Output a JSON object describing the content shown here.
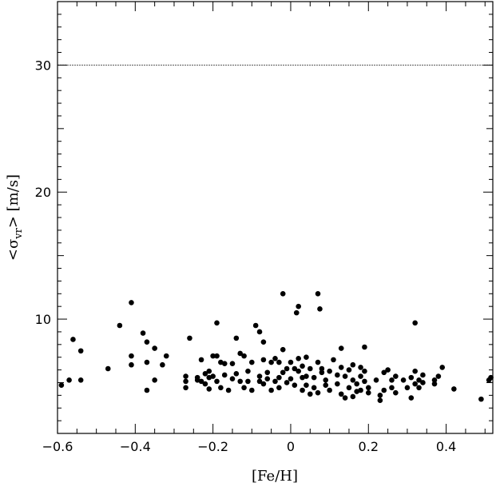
{
  "chart_data": {
    "type": "scatter",
    "xlabel": "[Fe/H]",
    "ylabel_parts": {
      "open": "<σ",
      "sub": "vr",
      "close": "> [m/s]"
    },
    "xlim": [
      -0.6,
      0.52
    ],
    "ylim": [
      1,
      35
    ],
    "x_ticks": [
      -0.6,
      -0.4,
      -0.2,
      0,
      0.2,
      0.4
    ],
    "x_tick_labels": [
      "−0.6",
      "−0.4",
      "−0.2",
      "0",
      "0.2",
      "0.4"
    ],
    "y_ticks": [
      10,
      20,
      30
    ],
    "y_tick_labels": [
      "10",
      "20",
      "30"
    ],
    "reference_line_y": 30,
    "points": [
      [
        -0.59,
        4.8
      ],
      [
        -0.57,
        5.2
      ],
      [
        -0.56,
        8.4
      ],
      [
        -0.54,
        7.5
      ],
      [
        -0.54,
        5.2
      ],
      [
        -0.47,
        6.1
      ],
      [
        -0.44,
        9.5
      ],
      [
        -0.41,
        11.3
      ],
      [
        -0.41,
        6.4
      ],
      [
        -0.41,
        7.1
      ],
      [
        -0.38,
        8.9
      ],
      [
        -0.37,
        8.2
      ],
      [
        -0.37,
        6.6
      ],
      [
        -0.37,
        4.4
      ],
      [
        -0.35,
        7.7
      ],
      [
        -0.35,
        5.2
      ],
      [
        -0.33,
        6.4
      ],
      [
        -0.32,
        7.1
      ],
      [
        -0.27,
        5.5
      ],
      [
        -0.27,
        5.1
      ],
      [
        -0.27,
        4.6
      ],
      [
        -0.26,
        8.5
      ],
      [
        -0.24,
        5.4
      ],
      [
        -0.24,
        5.2
      ],
      [
        -0.23,
        6.8
      ],
      [
        -0.23,
        5.1
      ],
      [
        -0.22,
        4.9
      ],
      [
        -0.22,
        5.7
      ],
      [
        -0.21,
        5.9
      ],
      [
        -0.21,
        5.4
      ],
      [
        -0.21,
        4.5
      ],
      [
        -0.2,
        7.1
      ],
      [
        -0.2,
        5.5
      ],
      [
        -0.19,
        9.7
      ],
      [
        -0.19,
        7.1
      ],
      [
        -0.19,
        5.1
      ],
      [
        -0.18,
        6.6
      ],
      [
        -0.18,
        4.6
      ],
      [
        -0.17,
        6.5
      ],
      [
        -0.17,
        5.6
      ],
      [
        -0.16,
        4.4
      ],
      [
        -0.15,
        6.5
      ],
      [
        -0.15,
        5.3
      ],
      [
        -0.14,
        8.5
      ],
      [
        -0.14,
        5.7
      ],
      [
        -0.13,
        7.3
      ],
      [
        -0.13,
        5.1
      ],
      [
        -0.12,
        7.1
      ],
      [
        -0.12,
        4.6
      ],
      [
        -0.11,
        5.9
      ],
      [
        -0.11,
        5.1
      ],
      [
        -0.1,
        6.6
      ],
      [
        -0.1,
        4.4
      ],
      [
        -0.09,
        9.5
      ],
      [
        -0.08,
        9.0
      ],
      [
        -0.08,
        5.5
      ],
      [
        -0.08,
        5.1
      ],
      [
        -0.07,
        6.8
      ],
      [
        -0.07,
        8.2
      ],
      [
        -0.07,
        4.9
      ],
      [
        -0.06,
        5.8
      ],
      [
        -0.06,
        5.3
      ],
      [
        -0.05,
        6.6
      ],
      [
        -0.05,
        4.4
      ],
      [
        -0.04,
        6.9
      ],
      [
        -0.04,
        5.1
      ],
      [
        -0.03,
        6.6
      ],
      [
        -0.03,
        5.4
      ],
      [
        -0.03,
        4.6
      ],
      [
        -0.02,
        12.0
      ],
      [
        -0.02,
        7.6
      ],
      [
        -0.02,
        5.8
      ],
      [
        -0.01,
        6.1
      ],
      [
        -0.01,
        5.0
      ],
      [
        0.0,
        6.6
      ],
      [
        0.0,
        5.3
      ],
      [
        0.01,
        6.1
      ],
      [
        0.01,
        4.8
      ],
      [
        0.015,
        10.5
      ],
      [
        0.02,
        11.0
      ],
      [
        0.02,
        6.9
      ],
      [
        0.02,
        5.9
      ],
      [
        0.03,
        6.3
      ],
      [
        0.03,
        5.4
      ],
      [
        0.03,
        4.4
      ],
      [
        0.04,
        7.0
      ],
      [
        0.04,
        5.5
      ],
      [
        0.04,
        4.8
      ],
      [
        0.05,
        4.1
      ],
      [
        0.05,
        6.1
      ],
      [
        0.06,
        5.4
      ],
      [
        0.06,
        4.6
      ],
      [
        0.07,
        12.0
      ],
      [
        0.07,
        6.6
      ],
      [
        0.07,
        4.2
      ],
      [
        0.075,
        10.8
      ],
      [
        0.08,
        5.8
      ],
      [
        0.08,
        6.1
      ],
      [
        0.09,
        5.2
      ],
      [
        0.09,
        4.8
      ],
      [
        0.1,
        5.9
      ],
      [
        0.1,
        4.4
      ],
      [
        0.11,
        6.8
      ],
      [
        0.12,
        5.6
      ],
      [
        0.12,
        4.9
      ],
      [
        0.13,
        6.2
      ],
      [
        0.13,
        4.1
      ],
      [
        0.13,
        7.7
      ],
      [
        0.14,
        5.5
      ],
      [
        0.14,
        3.8
      ],
      [
        0.15,
        4.6
      ],
      [
        0.15,
        6.0
      ],
      [
        0.16,
        5.2
      ],
      [
        0.16,
        3.9
      ],
      [
        0.16,
        6.4
      ],
      [
        0.17,
        4.9
      ],
      [
        0.17,
        4.3
      ],
      [
        0.18,
        6.2
      ],
      [
        0.18,
        5.5
      ],
      [
        0.18,
        4.4
      ],
      [
        0.19,
        7.8
      ],
      [
        0.19,
        5.9
      ],
      [
        0.19,
        5.1
      ],
      [
        0.2,
        4.6
      ],
      [
        0.2,
        4.2
      ],
      [
        0.22,
        5.2
      ],
      [
        0.23,
        4.0
      ],
      [
        0.23,
        3.6
      ],
      [
        0.24,
        5.8
      ],
      [
        0.24,
        4.4
      ],
      [
        0.25,
        6.0
      ],
      [
        0.26,
        5.2
      ],
      [
        0.26,
        4.6
      ],
      [
        0.27,
        5.5
      ],
      [
        0.27,
        4.2
      ],
      [
        0.29,
        5.2
      ],
      [
        0.3,
        4.6
      ],
      [
        0.31,
        5.4
      ],
      [
        0.31,
        3.8
      ],
      [
        0.32,
        9.7
      ],
      [
        0.32,
        5.9
      ],
      [
        0.32,
        4.9
      ],
      [
        0.33,
        5.2
      ],
      [
        0.33,
        4.6
      ],
      [
        0.34,
        5.6
      ],
      [
        0.34,
        5.0
      ],
      [
        0.37,
        5.2
      ],
      [
        0.37,
        4.9
      ],
      [
        0.38,
        5.5
      ],
      [
        0.39,
        6.2
      ],
      [
        0.42,
        4.5
      ],
      [
        0.49,
        3.7
      ],
      [
        0.51,
        5.2
      ],
      [
        0.515,
        5.4
      ]
    ]
  }
}
